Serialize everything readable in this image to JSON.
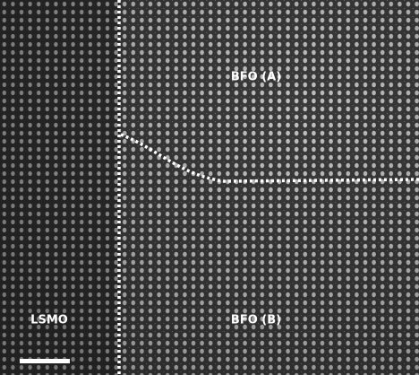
{
  "labels": {
    "top_right": "BFO (A)",
    "bottom_right": "BFO (B)",
    "bottom_left": "LSMO"
  }
}
